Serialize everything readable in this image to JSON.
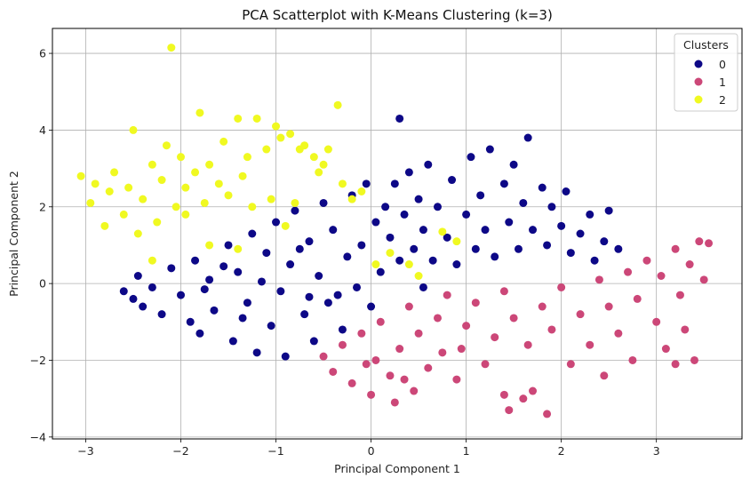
{
  "chart_data": {
    "type": "scatter",
    "title": "PCA Scatterplot with K-Means Clustering (k=3)",
    "xlabel": "Principal Component 1",
    "ylabel": "Principal Component 2",
    "xlim": [
      -3.35,
      3.9
    ],
    "ylim": [
      -4.05,
      6.65
    ],
    "xticks": [
      -3,
      -2,
      -1,
      0,
      1,
      2,
      3
    ],
    "xtick_labels": [
      "−3",
      "−2",
      "−1",
      "0",
      "1",
      "2",
      "3"
    ],
    "yticks": [
      -4,
      -2,
      0,
      2,
      4,
      6
    ],
    "ytick_labels": [
      "−4",
      "−2",
      "0",
      "2",
      "4",
      "6"
    ],
    "grid": true,
    "legend": {
      "title": "Clusters",
      "placement": "top-right",
      "entries": [
        "0",
        "1",
        "2"
      ]
    },
    "colors": {
      "0": "#0d0887",
      "1": "#cc4778",
      "2": "#f0f921"
    },
    "series": [
      {
        "name": "0",
        "color": "#0d0887",
        "points": [
          [
            -2.6,
            -0.2
          ],
          [
            -2.5,
            -0.4
          ],
          [
            -2.45,
            0.2
          ],
          [
            -2.4,
            -0.6
          ],
          [
            -2.3,
            -0.1
          ],
          [
            -2.2,
            -0.8
          ],
          [
            -2.1,
            0.4
          ],
          [
            -2.0,
            -0.3
          ],
          [
            -1.9,
            -1.0
          ],
          [
            -1.85,
            0.6
          ],
          [
            -1.8,
            -1.3
          ],
          [
            -1.7,
            0.1
          ],
          [
            -1.65,
            -0.7
          ],
          [
            -1.5,
            1.0
          ],
          [
            -1.45,
            -1.5
          ],
          [
            -1.4,
            0.3
          ],
          [
            -1.3,
            -0.5
          ],
          [
            -1.25,
            1.3
          ],
          [
            -1.2,
            -1.8
          ],
          [
            -1.1,
            0.8
          ],
          [
            -1.05,
            -1.1
          ],
          [
            -1.0,
            1.6
          ],
          [
            -0.95,
            -0.2
          ],
          [
            -0.9,
            -1.9
          ],
          [
            -0.85,
            0.5
          ],
          [
            -0.8,
            1.9
          ],
          [
            -0.7,
            -0.8
          ],
          [
            -0.65,
            1.1
          ],
          [
            -0.6,
            -1.5
          ],
          [
            -0.55,
            0.2
          ],
          [
            -0.5,
            2.1
          ],
          [
            -0.45,
            -0.5
          ],
          [
            -0.4,
            1.4
          ],
          [
            -0.3,
            -1.2
          ],
          [
            -0.25,
            0.7
          ],
          [
            -0.2,
            2.3
          ],
          [
            -0.15,
            -0.1
          ],
          [
            -0.1,
            1.0
          ],
          [
            -0.05,
            2.6
          ],
          [
            0.0,
            -0.6
          ],
          [
            0.05,
            1.6
          ],
          [
            0.1,
            0.3
          ],
          [
            0.15,
            2.0
          ],
          [
            0.2,
            1.2
          ],
          [
            0.25,
            2.6
          ],
          [
            0.3,
            0.6
          ],
          [
            0.3,
            4.3
          ],
          [
            0.35,
            1.8
          ],
          [
            0.4,
            2.9
          ],
          [
            0.45,
            0.9
          ],
          [
            0.5,
            2.2
          ],
          [
            0.55,
            1.4
          ],
          [
            0.6,
            3.1
          ],
          [
            0.65,
            0.6
          ],
          [
            0.7,
            2.0
          ],
          [
            0.8,
            1.2
          ],
          [
            0.85,
            2.7
          ],
          [
            0.9,
            0.5
          ],
          [
            1.0,
            1.8
          ],
          [
            1.05,
            3.3
          ],
          [
            1.1,
            0.9
          ],
          [
            1.15,
            2.3
          ],
          [
            1.2,
            1.4
          ],
          [
            1.25,
            3.5
          ],
          [
            1.3,
            0.7
          ],
          [
            1.4,
            2.6
          ],
          [
            1.45,
            1.6
          ],
          [
            1.5,
            3.1
          ],
          [
            1.55,
            0.9
          ],
          [
            1.6,
            2.1
          ],
          [
            1.65,
            3.8
          ],
          [
            1.7,
            1.4
          ],
          [
            1.8,
            2.5
          ],
          [
            1.85,
            1.0
          ],
          [
            1.9,
            2.0
          ],
          [
            2.0,
            1.5
          ],
          [
            2.05,
            2.4
          ],
          [
            2.1,
            0.8
          ],
          [
            2.2,
            1.3
          ],
          [
            2.3,
            1.8
          ],
          [
            2.35,
            0.6
          ],
          [
            2.45,
            1.1
          ],
          [
            2.5,
            1.9
          ],
          [
            2.6,
            0.9
          ],
          [
            -1.75,
            -0.15
          ],
          [
            -1.35,
            -0.9
          ],
          [
            -0.75,
            0.9
          ],
          [
            -0.35,
            -0.3
          ],
          [
            0.55,
            -0.1
          ],
          [
            -1.55,
            0.45
          ],
          [
            -1.15,
            0.05
          ],
          [
            -0.65,
            -0.35
          ]
        ]
      },
      {
        "name": "1",
        "color": "#cc4778",
        "points": [
          [
            -0.5,
            -1.9
          ],
          [
            -0.4,
            -2.3
          ],
          [
            -0.3,
            -1.6
          ],
          [
            -0.2,
            -2.6
          ],
          [
            -0.1,
            -1.3
          ],
          [
            0.0,
            -2.9
          ],
          [
            0.05,
            -2.0
          ],
          [
            0.1,
            -1.0
          ],
          [
            0.2,
            -2.4
          ],
          [
            0.25,
            -3.1
          ],
          [
            0.3,
            -1.7
          ],
          [
            0.4,
            -0.6
          ],
          [
            0.45,
            -2.8
          ],
          [
            0.5,
            -1.3
          ],
          [
            0.6,
            -2.2
          ],
          [
            0.7,
            -0.9
          ],
          [
            0.75,
            -1.8
          ],
          [
            0.8,
            -0.3
          ],
          [
            0.9,
            -2.5
          ],
          [
            1.0,
            -1.1
          ],
          [
            1.1,
            -0.5
          ],
          [
            1.2,
            -2.1
          ],
          [
            1.3,
            -1.4
          ],
          [
            1.4,
            -0.2
          ],
          [
            1.45,
            -3.3
          ],
          [
            1.5,
            -0.9
          ],
          [
            1.6,
            -3.0
          ],
          [
            1.65,
            -1.6
          ],
          [
            1.7,
            -2.8
          ],
          [
            1.8,
            -0.6
          ],
          [
            1.85,
            -3.4
          ],
          [
            1.9,
            -1.2
          ],
          [
            2.0,
            -0.1
          ],
          [
            2.1,
            -2.1
          ],
          [
            2.2,
            -0.8
          ],
          [
            2.3,
            -1.6
          ],
          [
            2.4,
            0.1
          ],
          [
            2.45,
            -2.4
          ],
          [
            2.5,
            -0.6
          ],
          [
            2.6,
            -1.3
          ],
          [
            2.7,
            0.3
          ],
          [
            2.75,
            -2.0
          ],
          [
            2.8,
            -0.4
          ],
          [
            2.9,
            0.6
          ],
          [
            3.0,
            -1.0
          ],
          [
            3.05,
            0.2
          ],
          [
            3.1,
            -1.7
          ],
          [
            3.2,
            0.9
          ],
          [
            3.25,
            -0.3
          ],
          [
            3.3,
            -1.2
          ],
          [
            3.35,
            0.5
          ],
          [
            3.4,
            -2.0
          ],
          [
            3.45,
            1.1
          ],
          [
            3.5,
            0.1
          ],
          [
            3.55,
            1.05
          ],
          [
            3.2,
            -2.1
          ],
          [
            1.4,
            -2.9
          ],
          [
            -0.05,
            -2.1
          ],
          [
            0.35,
            -2.5
          ],
          [
            0.95,
            -1.7
          ]
        ]
      },
      {
        "name": "2",
        "color": "#f0f921",
        "points": [
          [
            -3.05,
            2.8
          ],
          [
            -2.95,
            2.1
          ],
          [
            -2.9,
            2.6
          ],
          [
            -2.8,
            1.5
          ],
          [
            -2.75,
            2.4
          ],
          [
            -2.7,
            2.9
          ],
          [
            -2.6,
            1.8
          ],
          [
            -2.55,
            2.5
          ],
          [
            -2.5,
            4.0
          ],
          [
            -2.45,
            1.3
          ],
          [
            -2.4,
            2.2
          ],
          [
            -2.3,
            3.1
          ],
          [
            -2.25,
            1.6
          ],
          [
            -2.2,
            2.7
          ],
          [
            -2.15,
            3.6
          ],
          [
            -2.1,
            6.15
          ],
          [
            -2.05,
            2.0
          ],
          [
            -2.0,
            3.3
          ],
          [
            -1.95,
            2.5
          ],
          [
            -1.85,
            2.9
          ],
          [
            -1.8,
            4.45
          ],
          [
            -1.75,
            2.1
          ],
          [
            -1.7,
            3.1
          ],
          [
            -1.6,
            2.6
          ],
          [
            -1.55,
            3.7
          ],
          [
            -1.5,
            2.3
          ],
          [
            -1.4,
            4.3
          ],
          [
            -1.35,
            2.8
          ],
          [
            -1.3,
            3.3
          ],
          [
            -1.25,
            2.0
          ],
          [
            -1.2,
            4.3
          ],
          [
            -1.1,
            3.5
          ],
          [
            -1.05,
            2.2
          ],
          [
            -1.0,
            4.1
          ],
          [
            -0.95,
            3.8
          ],
          [
            -0.9,
            1.5
          ],
          [
            -0.85,
            3.9
          ],
          [
            -0.8,
            2.1
          ],
          [
            -0.75,
            3.5
          ],
          [
            -0.7,
            3.6
          ],
          [
            -0.6,
            3.3
          ],
          [
            -0.55,
            2.9
          ],
          [
            -0.5,
            3.1
          ],
          [
            -0.45,
            3.5
          ],
          [
            -0.35,
            4.65
          ],
          [
            -0.3,
            2.6
          ],
          [
            -0.2,
            2.2
          ],
          [
            -0.1,
            2.4
          ],
          [
            0.05,
            0.5
          ],
          [
            0.2,
            0.8
          ],
          [
            0.4,
            0.5
          ],
          [
            0.5,
            0.2
          ],
          [
            0.75,
            1.35
          ],
          [
            0.9,
            1.1
          ],
          [
            -1.95,
            1.8
          ],
          [
            -1.7,
            1.0
          ],
          [
            -1.4,
            0.9
          ],
          [
            -2.3,
            0.6
          ]
        ]
      }
    ]
  }
}
